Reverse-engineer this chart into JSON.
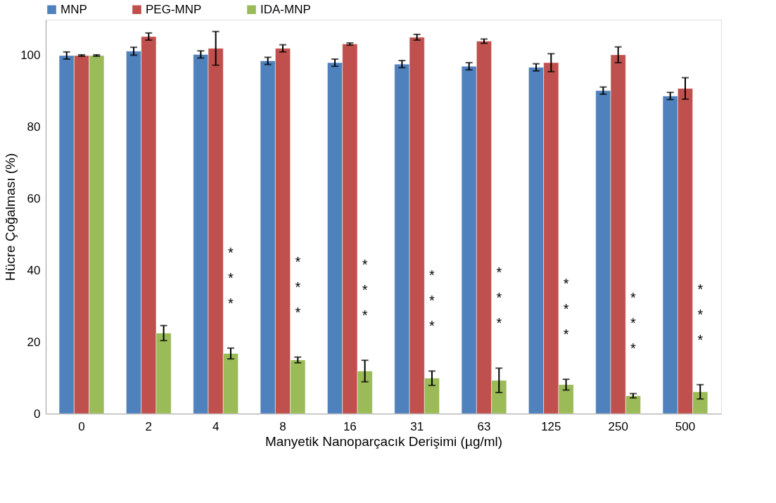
{
  "chart_data": {
    "type": "bar",
    "xlabel": "Manyetik Nanoparçacık Derişimi (µg/ml)",
    "ylabel": "Hücre Çoğalması (%)",
    "categories": [
      "0",
      "2",
      "4",
      "8",
      "16",
      "31",
      "63",
      "125",
      "250",
      "500"
    ],
    "series": [
      {
        "name": "MNP",
        "color": "#4f81bd",
        "values": [
          100,
          101.2,
          100.3,
          98.5,
          98,
          97.6,
          97,
          96.7,
          90.2,
          88.7
        ],
        "errors": [
          1,
          1.1,
          1,
          1,
          1,
          1,
          1,
          1,
          1,
          1
        ]
      },
      {
        "name": "PEG-MNP",
        "color": "#c0504d",
        "values": [
          100,
          105.3,
          102,
          102,
          103.2,
          105.1,
          104,
          98,
          100.2,
          90.8
        ],
        "errors": [
          0.2,
          1,
          4.7,
          1,
          0.3,
          0.8,
          0.6,
          2.5,
          2.2,
          3
        ]
      },
      {
        "name": "IDA-MNP",
        "color": "#9bbb59",
        "values": [
          100,
          22.5,
          16.8,
          15,
          11.9,
          9.9,
          9.3,
          8.1,
          5,
          6.1
        ],
        "errors": [
          0.2,
          2.1,
          1.5,
          0.8,
          3,
          2,
          3.4,
          1.5,
          0.6,
          2
        ]
      }
    ],
    "ylim": [
      0,
      110
    ],
    "yticks": [
      0,
      20,
      40,
      60,
      80,
      100
    ],
    "grid": false,
    "legend": "top",
    "annotations": [
      "*\n*\n*",
      "*\n*\n*",
      "*\n*\n*",
      "*\n*\n*",
      "*\n*\n*",
      "*\n*\n*",
      "*\n*\n*",
      "*\n*\n*"
    ]
  }
}
